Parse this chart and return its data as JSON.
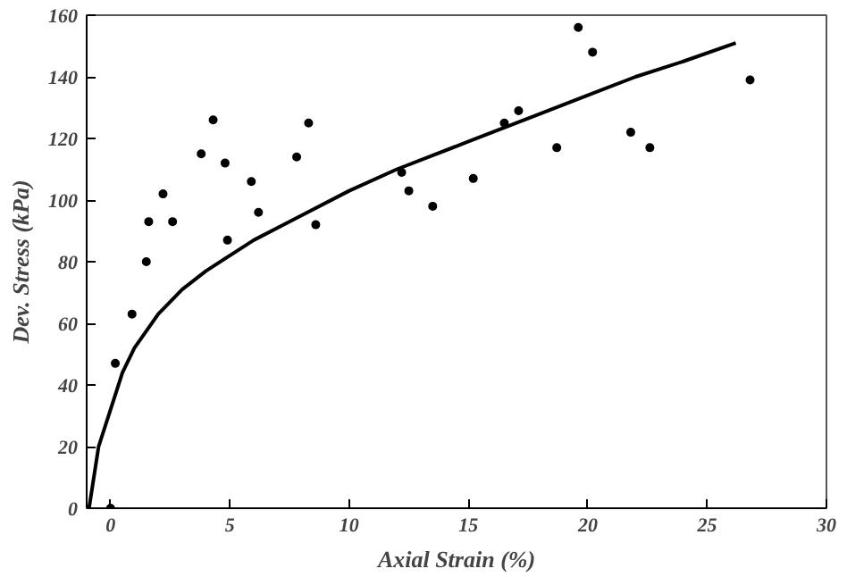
{
  "chart_data": {
    "type": "scatter",
    "xlabel": "Axial Strain (%)",
    "ylabel": "Dev. Stress (kPa)",
    "xlim": [
      -1,
      30
    ],
    "ylim": [
      0,
      160
    ],
    "xticks": [
      0,
      5,
      10,
      15,
      20,
      25,
      30
    ],
    "yticks": [
      0,
      20,
      40,
      60,
      80,
      100,
      120,
      140,
      160
    ],
    "grid": false,
    "series": [
      {
        "color": "#000000",
        "marker": "circle",
        "x": [
          0,
          0.2,
          0.9,
          1.5,
          1.6,
          2.2,
          2.6,
          3.8,
          4.3,
          4.8,
          4.9,
          5.9,
          6.2,
          7.8,
          8.3,
          8.6,
          12.2,
          12.5,
          13.5,
          15.2,
          16.5,
          17.1,
          18.7,
          19.6,
          20.2,
          21.8,
          22.6,
          26.8
        ],
        "values": [
          0,
          47,
          63,
          80,
          93,
          102,
          93,
          115,
          126,
          112,
          87,
          106,
          96,
          114,
          125,
          92,
          109,
          103,
          98,
          107,
          125,
          129,
          117,
          156,
          148,
          122,
          117,
          139
        ]
      },
      {
        "type": "line",
        "color": "#000000",
        "line_style": "solid",
        "x": [
          -0.9,
          -0.5,
          0,
          0.5,
          1,
          2,
          3,
          4,
          5,
          6,
          8,
          10,
          12,
          15,
          18,
          20,
          22,
          24,
          26.2
        ],
        "values": [
          0,
          20,
          32,
          44,
          52,
          63,
          71,
          77,
          82,
          87,
          95,
          103,
          110,
          119,
          128,
          134,
          140,
          145,
          151
        ]
      }
    ]
  }
}
